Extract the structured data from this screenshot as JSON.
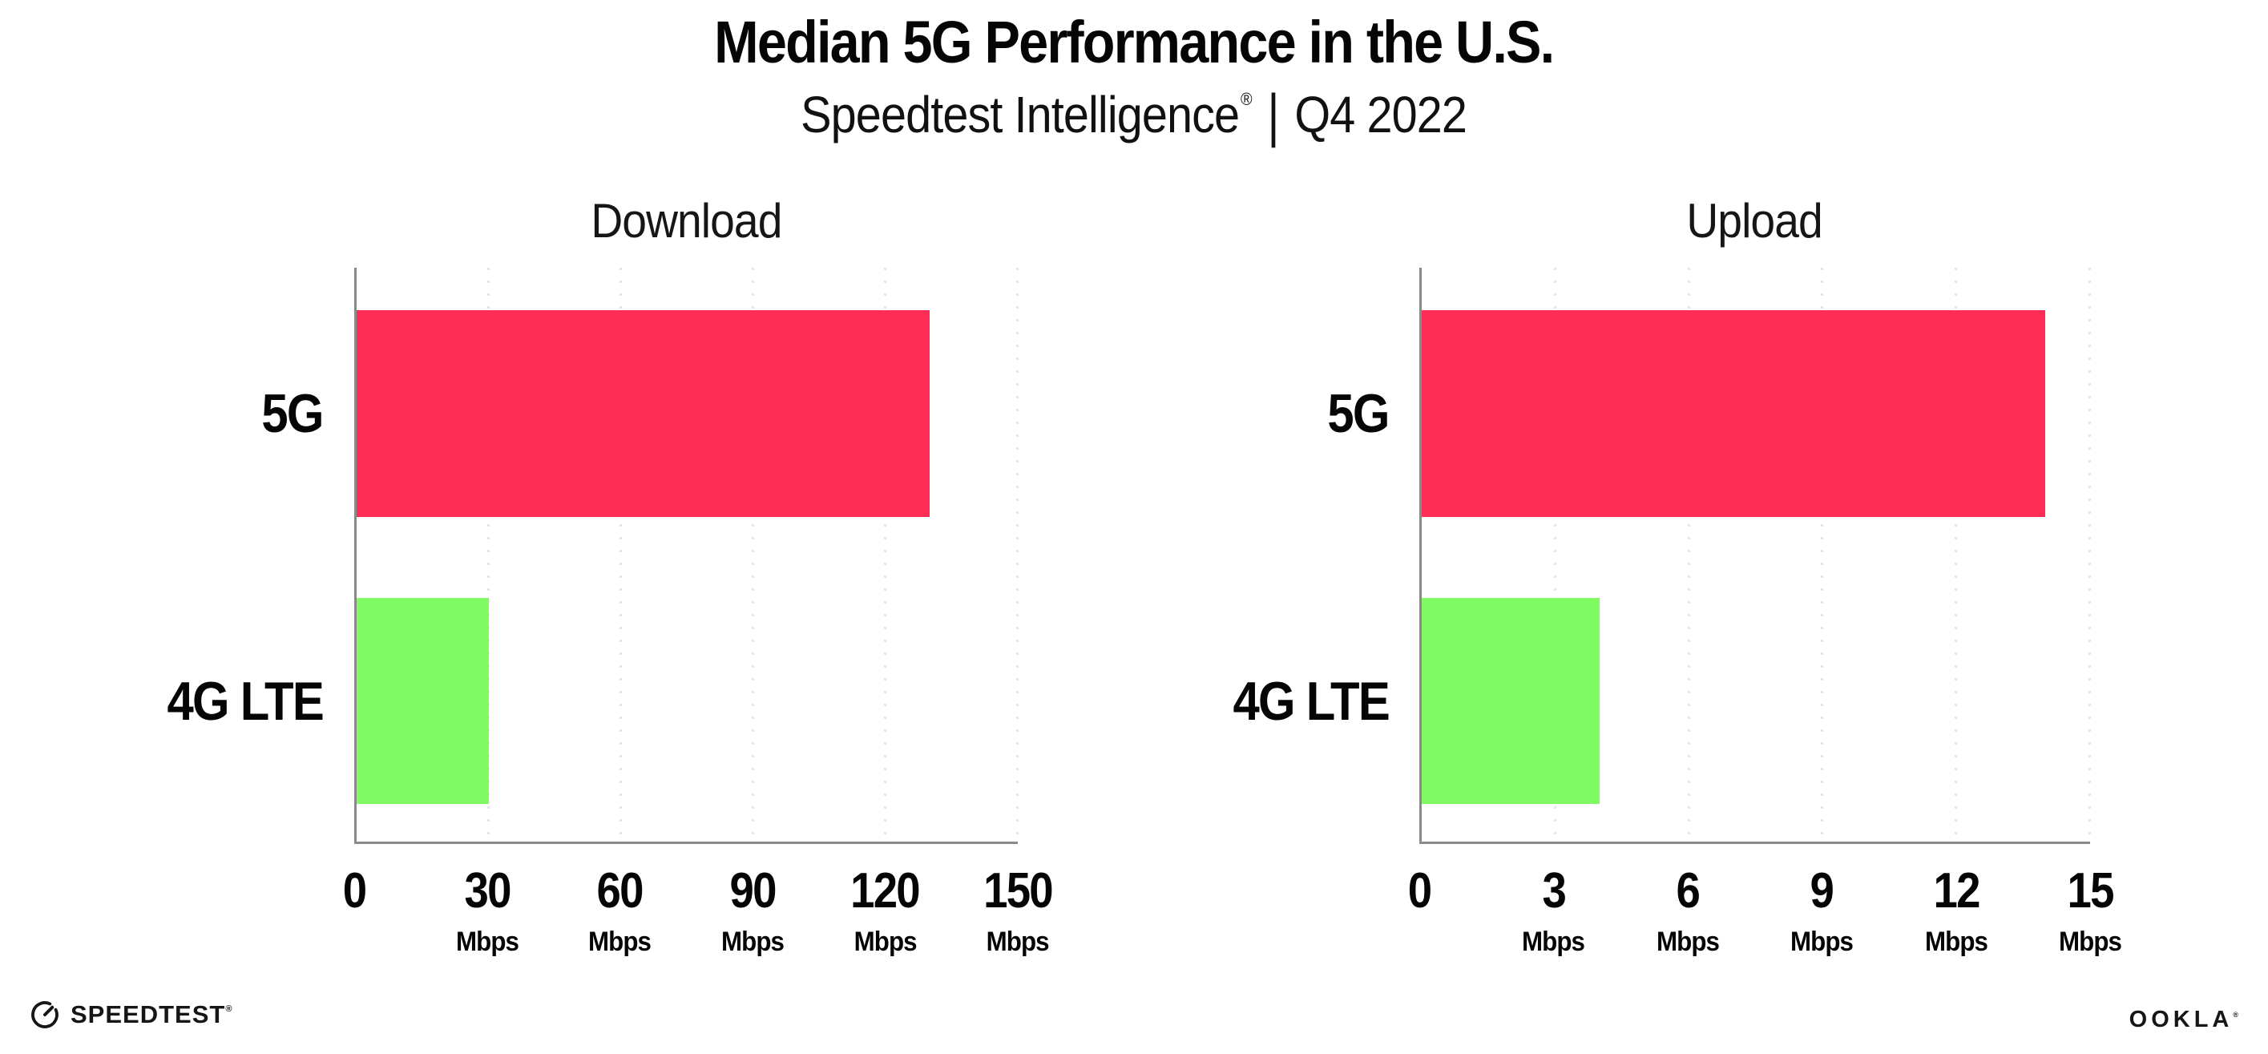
{
  "header": {
    "title": "Median 5G Performance in the U.S.",
    "subtitle": {
      "brand": "Speedtest Intelligence",
      "registered_mark": "®",
      "divider": "|",
      "period": "Q4 2022"
    }
  },
  "colors": {
    "bar_5g": "#FF2D55",
    "bar_4g_lte": "#80FB64",
    "axis": "#8a8a8a",
    "gridline": "#e4e4ef",
    "text": "#0a0a0a",
    "background": "#ffffff"
  },
  "chart_data": [
    {
      "type": "bar",
      "orientation": "horizontal",
      "title": "Download",
      "categories": [
        "5G",
        "4G LTE"
      ],
      "values": [
        130,
        30
      ],
      "unit": "Mbps",
      "bar_colors": [
        "#FF2D55",
        "#80FB64"
      ],
      "xlim": [
        0,
        150
      ],
      "xticks": [
        0,
        30,
        60,
        90,
        120,
        150
      ],
      "grid": "vertical-dotted",
      "legend": "none",
      "value_labels": "none"
    },
    {
      "type": "bar",
      "orientation": "horizontal",
      "title": "Upload",
      "categories": [
        "5G",
        "4G LTE"
      ],
      "values": [
        14,
        4
      ],
      "unit": "Mbps",
      "bar_colors": [
        "#FF2D55",
        "#80FB64"
      ],
      "xlim": [
        0,
        15
      ],
      "xticks": [
        0,
        3,
        6,
        9,
        12,
        15
      ],
      "grid": "vertical-dotted",
      "legend": "none",
      "value_labels": "none"
    }
  ],
  "footer": {
    "speedtest_wordmark": "SPEEDTEST",
    "speedtest_mark": "®",
    "ookla_wordmark": "OOKLA",
    "ookla_mark": "®"
  }
}
